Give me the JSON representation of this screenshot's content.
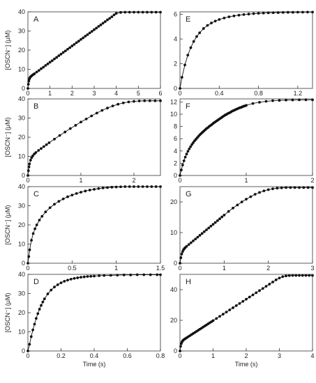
{
  "chart_data": [
    {
      "type": "scatter",
      "panel_label": "A",
      "xlim": [
        0,
        6
      ],
      "ylim": [
        0,
        40
      ],
      "xticks": [
        0,
        1,
        2,
        3,
        4,
        5,
        6
      ],
      "xtick_labels": [
        "0",
        "1",
        "2",
        "3",
        "4",
        "5",
        "6"
      ],
      "yticks": [
        0,
        10,
        20,
        30,
        40
      ],
      "ytick_labels": [
        "0",
        "10",
        "20",
        "30",
        "40"
      ],
      "xlabel": "",
      "ylabel": "[OSCN⁻] (μM)",
      "fit_line": true,
      "marker": "filled-circle",
      "x": [
        0,
        0.02,
        0.04,
        0.06,
        0.08,
        0.1,
        0.13,
        0.16,
        0.2,
        0.25,
        0.3,
        0.4,
        0.5,
        0.6,
        0.7,
        0.8,
        0.9,
        1.0,
        1.1,
        1.2,
        1.3,
        1.4,
        1.5,
        1.6,
        1.7,
        1.8,
        1.9,
        2.0,
        2.1,
        2.2,
        2.3,
        2.4,
        2.5,
        2.6,
        2.7,
        2.8,
        2.9,
        3.0,
        3.1,
        3.2,
        3.3,
        3.4,
        3.5,
        3.6,
        3.7,
        3.8,
        3.9,
        4.0,
        4.2,
        4.4,
        4.6,
        4.8,
        5.0,
        5.2,
        5.4,
        5.6,
        5.8,
        6.0
      ],
      "y": [
        0,
        2.2,
        3.8,
        4.8,
        5.4,
        5.8,
        6.2,
        6.5,
        6.9,
        7.3,
        7.7,
        8.6,
        9.4,
        10.3,
        11.1,
        12.0,
        12.8,
        13.7,
        14.5,
        15.4,
        16.2,
        17.1,
        17.9,
        18.8,
        19.6,
        20.5,
        21.3,
        22.2,
        23.0,
        23.9,
        24.7,
        25.6,
        26.4,
        27.3,
        28.1,
        29.0,
        29.8,
        30.7,
        31.5,
        32.4,
        33.2,
        34.1,
        34.9,
        35.8,
        36.6,
        37.4,
        38.4,
        39.2,
        39.7,
        39.8,
        39.8,
        39.8,
        39.8,
        39.8,
        39.8,
        39.8,
        39.8,
        39.8
      ]
    },
    {
      "type": "scatter",
      "panel_label": "B",
      "xlim": [
        0,
        2.5
      ],
      "ylim": [
        0,
        40
      ],
      "xticks": [
        0,
        1,
        2
      ],
      "xtick_labels": [
        "0",
        "1",
        "2"
      ],
      "yticks": [
        0,
        10,
        20,
        30,
        40
      ],
      "ytick_labels": [
        "0",
        "10",
        "20",
        "30",
        "40"
      ],
      "xlabel": "",
      "ylabel": "[OSCN⁻] (μM)",
      "fit_line": true,
      "marker": "filled-circle",
      "x": [
        0,
        0.01,
        0.02,
        0.03,
        0.05,
        0.07,
        0.09,
        0.12,
        0.15,
        0.2,
        0.25,
        0.3,
        0.35,
        0.4,
        0.5,
        0.6,
        0.7,
        0.8,
        0.9,
        1.0,
        1.1,
        1.2,
        1.3,
        1.4,
        1.5,
        1.6,
        1.7,
        1.8,
        1.9,
        2.0,
        2.1,
        2.2,
        2.3,
        2.4,
        2.5
      ],
      "y": [
        0,
        2.5,
        4.5,
        6.0,
        8.0,
        9.3,
        10.2,
        11.2,
        12.0,
        13.1,
        14.1,
        15.1,
        16.1,
        17.1,
        19.0,
        20.9,
        22.7,
        24.5,
        26.2,
        27.9,
        29.5,
        31.1,
        32.6,
        34.0,
        35.2,
        36.3,
        37.2,
        37.9,
        38.4,
        38.7,
        38.9,
        39.0,
        39.0,
        39.0,
        39.0
      ]
    },
    {
      "type": "scatter",
      "panel_label": "C",
      "xlim": [
        0,
        1.5
      ],
      "ylim": [
        0,
        40
      ],
      "xticks": [
        0,
        0.5,
        1,
        1.5
      ],
      "xtick_labels": [
        "0",
        "0.5",
        "1",
        "1.5"
      ],
      "yticks": [
        0,
        10,
        20,
        30,
        40
      ],
      "ytick_labels": [
        "0",
        "10",
        "20",
        "30",
        "40"
      ],
      "xlabel": "",
      "ylabel": "[OSCN⁻] (μM)",
      "fit_line": true,
      "marker": "filled-circle",
      "x": [
        0,
        0.01,
        0.02,
        0.04,
        0.06,
        0.08,
        0.1,
        0.13,
        0.16,
        0.2,
        0.25,
        0.3,
        0.35,
        0.4,
        0.45,
        0.5,
        0.55,
        0.6,
        0.65,
        0.7,
        0.75,
        0.8,
        0.85,
        0.9,
        0.95,
        1.0,
        1.05,
        1.1,
        1.15,
        1.2,
        1.25,
        1.3,
        1.35,
        1.4,
        1.45,
        1.5
      ],
      "y": [
        0,
        3.5,
        7.0,
        12.0,
        15.5,
        18.0,
        20.0,
        22.5,
        24.5,
        26.8,
        29.0,
        30.8,
        32.3,
        33.6,
        34.7,
        35.6,
        36.4,
        37.1,
        37.7,
        38.2,
        38.6,
        39.0,
        39.3,
        39.5,
        39.7,
        39.8,
        39.9,
        40.0,
        40.0,
        40.0,
        40.0,
        40.0,
        40.0,
        40.0,
        40.0,
        40.0
      ]
    },
    {
      "type": "scatter",
      "panel_label": "D",
      "xlim": [
        0,
        0.8
      ],
      "ylim": [
        0,
        40
      ],
      "xticks": [
        0,
        0.2,
        0.4,
        0.6,
        0.8
      ],
      "xtick_labels": [
        "0",
        "0.2",
        "0.4",
        "0.6",
        "0.8"
      ],
      "yticks": [
        0,
        10,
        20,
        30,
        40
      ],
      "ytick_labels": [
        "0",
        "10",
        "20",
        "30",
        "40"
      ],
      "xlabel": "Time (s)",
      "ylabel": "[OSCN⁻] (μM)",
      "fit_line": true,
      "marker": "filled-circle",
      "x": [
        0,
        0.01,
        0.02,
        0.03,
        0.04,
        0.05,
        0.06,
        0.07,
        0.08,
        0.09,
        0.1,
        0.12,
        0.14,
        0.16,
        0.18,
        0.2,
        0.22,
        0.24,
        0.26,
        0.28,
        0.3,
        0.32,
        0.34,
        0.36,
        0.38,
        0.4,
        0.43,
        0.46,
        0.5,
        0.54,
        0.58,
        0.62,
        0.66,
        0.7,
        0.74,
        0.78,
        0.8
      ],
      "y": [
        0,
        3.5,
        7.5,
        11.0,
        14.0,
        17.0,
        19.5,
        21.8,
        23.8,
        25.6,
        27.2,
        29.8,
        31.8,
        33.4,
        34.6,
        35.6,
        36.4,
        37.0,
        37.5,
        37.9,
        38.2,
        38.5,
        38.7,
        38.9,
        39.0,
        39.1,
        39.3,
        39.4,
        39.5,
        39.6,
        39.7,
        39.7,
        39.8,
        39.8,
        39.8,
        39.8,
        39.8
      ]
    },
    {
      "type": "scatter",
      "panel_label": "E",
      "xlim": [
        0,
        1.35
      ],
      "ylim": [
        0,
        6.2
      ],
      "xticks": [
        0,
        0.4,
        0.8,
        1.2
      ],
      "xtick_labels": [
        "0",
        "0.4",
        "0.8",
        "1.2"
      ],
      "yticks": [
        0,
        2,
        4,
        6
      ],
      "ytick_labels": [
        "0",
        "2",
        "4",
        "6"
      ],
      "xlabel": "",
      "ylabel": "",
      "fit_line": true,
      "marker": "filled-circle",
      "x": [
        0,
        0.02,
        0.05,
        0.08,
        0.11,
        0.14,
        0.17,
        0.2,
        0.24,
        0.28,
        0.32,
        0.36,
        0.4,
        0.45,
        0.5,
        0.55,
        0.6,
        0.65,
        0.7,
        0.75,
        0.8,
        0.85,
        0.9,
        0.95,
        1.0,
        1.05,
        1.1,
        1.15,
        1.2,
        1.25,
        1.3,
        1.35
      ],
      "y": [
        0,
        0.9,
        1.9,
        2.7,
        3.3,
        3.8,
        4.2,
        4.5,
        4.85,
        5.1,
        5.3,
        5.45,
        5.58,
        5.7,
        5.8,
        5.87,
        5.93,
        5.98,
        6.02,
        6.05,
        6.08,
        6.1,
        6.12,
        6.13,
        6.14,
        6.15,
        6.16,
        6.16,
        6.17,
        6.17,
        6.18,
        6.18
      ]
    },
    {
      "type": "scatter",
      "panel_label": "F",
      "xlim": [
        0,
        2
      ],
      "ylim": [
        0,
        12.5
      ],
      "xticks": [
        0,
        1,
        2
      ],
      "xtick_labels": [
        "0",
        "1",
        "2"
      ],
      "yticks": [
        0,
        2,
        4,
        6,
        8,
        10,
        12
      ],
      "ytick_labels": [
        "0",
        "2",
        "4",
        "6",
        "8",
        "10",
        "12"
      ],
      "xlabel": "",
      "ylabel": "",
      "fit_line": true,
      "marker": "filled-circle",
      "x": [
        0,
        0.02,
        0.04,
        0.06,
        0.08,
        0.1,
        0.12,
        0.14,
        0.16,
        0.18,
        0.2,
        0.22,
        0.24,
        0.26,
        0.28,
        0.3,
        0.32,
        0.34,
        0.36,
        0.38,
        0.4,
        0.42,
        0.44,
        0.46,
        0.48,
        0.5,
        0.52,
        0.54,
        0.56,
        0.58,
        0.6,
        0.62,
        0.64,
        0.66,
        0.68,
        0.7,
        0.72,
        0.74,
        0.76,
        0.78,
        0.8,
        0.82,
        0.84,
        0.86,
        0.88,
        0.9,
        0.92,
        0.94,
        0.96,
        0.98,
        1.0,
        1.1,
        1.2,
        1.3,
        1.4,
        1.5,
        1.6,
        1.7,
        1.8,
        1.9,
        2.0
      ],
      "y": [
        0,
        0.9,
        1.7,
        2.4,
        3.0,
        3.5,
        3.95,
        4.35,
        4.7,
        5.05,
        5.35,
        5.65,
        5.9,
        6.15,
        6.4,
        6.65,
        6.85,
        7.05,
        7.25,
        7.45,
        7.65,
        7.8,
        8.0,
        8.15,
        8.3,
        8.5,
        8.65,
        8.8,
        8.95,
        9.1,
        9.25,
        9.4,
        9.55,
        9.7,
        9.85,
        9.95,
        10.1,
        10.2,
        10.3,
        10.45,
        10.55,
        10.65,
        10.75,
        10.85,
        10.95,
        11.05,
        11.1,
        11.2,
        11.3,
        11.35,
        11.45,
        11.75,
        11.95,
        12.1,
        12.2,
        12.25,
        12.3,
        12.32,
        12.34,
        12.35,
        12.35
      ]
    },
    {
      "type": "scatter",
      "panel_label": "G",
      "xlim": [
        0,
        3
      ],
      "ylim": [
        0,
        25
      ],
      "xticks": [
        0,
        1,
        2,
        3
      ],
      "xtick_labels": [
        "0",
        "1",
        "2",
        "3"
      ],
      "yticks": [
        0,
        10,
        20
      ],
      "ytick_labels": [
        "0",
        "10",
        "20"
      ],
      "xlabel": "",
      "ylabel": "",
      "fit_line": true,
      "marker": "filled-circle",
      "x": [
        0,
        0.02,
        0.04,
        0.06,
        0.08,
        0.1,
        0.12,
        0.15,
        0.2,
        0.25,
        0.3,
        0.35,
        0.4,
        0.45,
        0.5,
        0.55,
        0.6,
        0.65,
        0.7,
        0.75,
        0.8,
        0.85,
        0.9,
        0.95,
        1.0,
        1.1,
        1.2,
        1.3,
        1.4,
        1.5,
        1.6,
        1.7,
        1.8,
        1.9,
        2.0,
        2.1,
        2.2,
        2.3,
        2.4,
        2.5,
        2.6,
        2.7,
        2.8,
        2.9,
        3.0
      ],
      "y": [
        0,
        1.8,
        3.0,
        3.8,
        4.4,
        4.8,
        5.1,
        5.5,
        6.1,
        6.7,
        7.3,
        7.9,
        8.5,
        9.1,
        9.7,
        10.3,
        10.9,
        11.5,
        12.1,
        12.7,
        13.3,
        13.9,
        14.5,
        15.1,
        15.7,
        16.9,
        18.0,
        19.0,
        20.0,
        20.9,
        21.7,
        22.5,
        23.1,
        23.6,
        24.0,
        24.3,
        24.5,
        24.6,
        24.7,
        24.7,
        24.7,
        24.7,
        24.7,
        24.7,
        24.7
      ]
    },
    {
      "type": "scatter",
      "panel_label": "H",
      "xlim": [
        0,
        4
      ],
      "ylim": [
        0,
        50
      ],
      "xticks": [
        0,
        1,
        2,
        3,
        4
      ],
      "xtick_labels": [
        "0",
        "1",
        "2",
        "3",
        "4"
      ],
      "yticks": [
        0,
        20,
        40
      ],
      "ytick_labels": [
        "0",
        "20",
        "40"
      ],
      "xlabel": "Time (s)",
      "ylabel": "",
      "fit_line": true,
      "marker": "filled-circle",
      "x": [
        0,
        0.02,
        0.04,
        0.06,
        0.08,
        0.1,
        0.13,
        0.16,
        0.2,
        0.25,
        0.3,
        0.35,
        0.4,
        0.45,
        0.5,
        0.55,
        0.6,
        0.65,
        0.7,
        0.75,
        0.8,
        0.85,
        0.9,
        0.95,
        1.0,
        1.1,
        1.2,
        1.3,
        1.4,
        1.5,
        1.6,
        1.7,
        1.8,
        1.9,
        2.0,
        2.1,
        2.2,
        2.3,
        2.4,
        2.5,
        2.6,
        2.7,
        2.8,
        2.9,
        3.0,
        3.1,
        3.2,
        3.3,
        3.4,
        3.5,
        3.6,
        3.7,
        3.8,
        3.9,
        4.0
      ],
      "y": [
        0,
        3.0,
        4.8,
        5.9,
        6.6,
        7.1,
        7.6,
        8.0,
        8.6,
        9.3,
        10.0,
        10.7,
        11.4,
        12.1,
        12.8,
        13.5,
        14.2,
        14.9,
        15.6,
        16.3,
        17.0,
        17.7,
        18.4,
        19.1,
        19.8,
        21.2,
        22.6,
        24.0,
        25.4,
        26.8,
        28.2,
        29.6,
        31.0,
        32.4,
        33.8,
        35.2,
        36.6,
        38.0,
        39.4,
        40.8,
        42.2,
        43.6,
        45.0,
        46.4,
        47.6,
        48.5,
        49.0,
        49.2,
        49.3,
        49.3,
        49.3,
        49.3,
        49.3,
        49.3,
        49.3
      ]
    }
  ]
}
